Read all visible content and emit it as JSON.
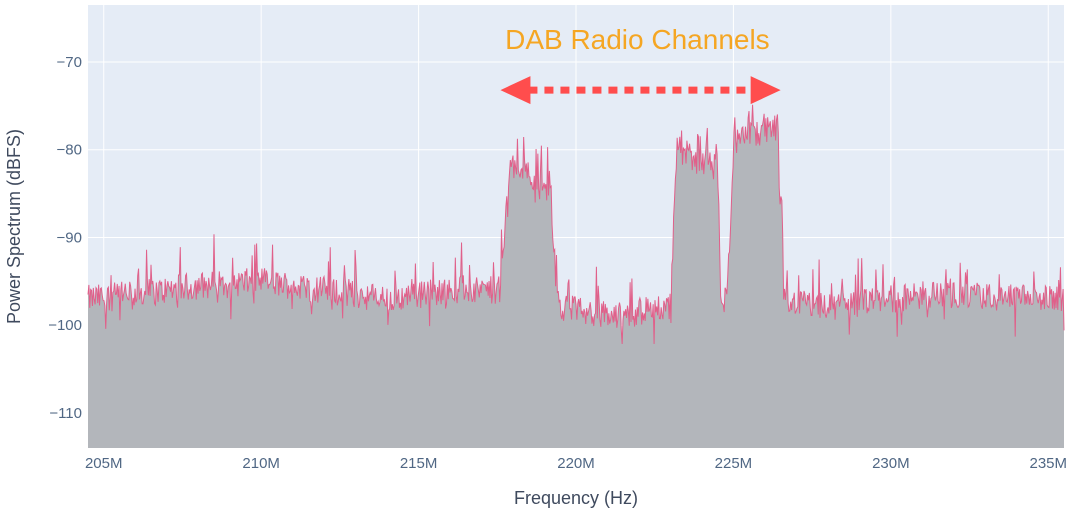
{
  "chart_data": {
    "type": "area",
    "xlabel": "Frequency (Hz)",
    "ylabel": "Power Spectrum (dBFS)",
    "xlim": [
      204500000,
      235500000
    ],
    "ylim": [
      -114,
      -63.5
    ],
    "x_ticks": [
      205000000,
      210000000,
      215000000,
      220000000,
      225000000,
      230000000,
      235000000
    ],
    "x_tick_labels": [
      "205M",
      "210M",
      "215M",
      "220M",
      "225M",
      "230M",
      "235M"
    ],
    "y_ticks": [
      -110,
      -100,
      -90,
      -80,
      -70
    ],
    "y_tick_labels": [
      "−110",
      "−100",
      "−90",
      "−80",
      "−70"
    ],
    "grid": true,
    "series_color": "#e0608a",
    "fill_color": "#b3b6bb",
    "plot_bg": "#e5ecf6",
    "series": [
      {
        "x": [
          204500000,
          206000000,
          208000000,
          210000000,
          212000000,
          214000000,
          216000000,
          217600000,
          217900000,
          218300000,
          218800000,
          219200000,
          219400000,
          219600000,
          220500000,
          221500000,
          222500000,
          223000000,
          223200000,
          223500000,
          224000000,
          224500000,
          224600000,
          224800000,
          225000000,
          225500000,
          226000000,
          226400000,
          226600000,
          228000000,
          230000000,
          232000000,
          234000000,
          235500000
        ],
        "y": [
          -97,
          -96.5,
          -95.5,
          -95,
          -96,
          -97,
          -96,
          -96,
          -81.5,
          -82,
          -83.5,
          -85,
          -97,
          -98,
          -98.5,
          -99,
          -98,
          -98,
          -79.5,
          -80.5,
          -81.5,
          -82,
          -97,
          -97,
          -79.5,
          -78.5,
          -78,
          -77.5,
          -97,
          -98,
          -97,
          -96.5,
          -97,
          -97
        ]
      }
    ],
    "annotation": {
      "text": "DAB Radio Channels",
      "color": "#f5a623",
      "arrow_color": "#ff4d4d",
      "arrow_x": [
        217600000,
        226500000
      ],
      "arrow_y": -73.2,
      "text_x": 221950000,
      "text_y": -68.5
    }
  }
}
